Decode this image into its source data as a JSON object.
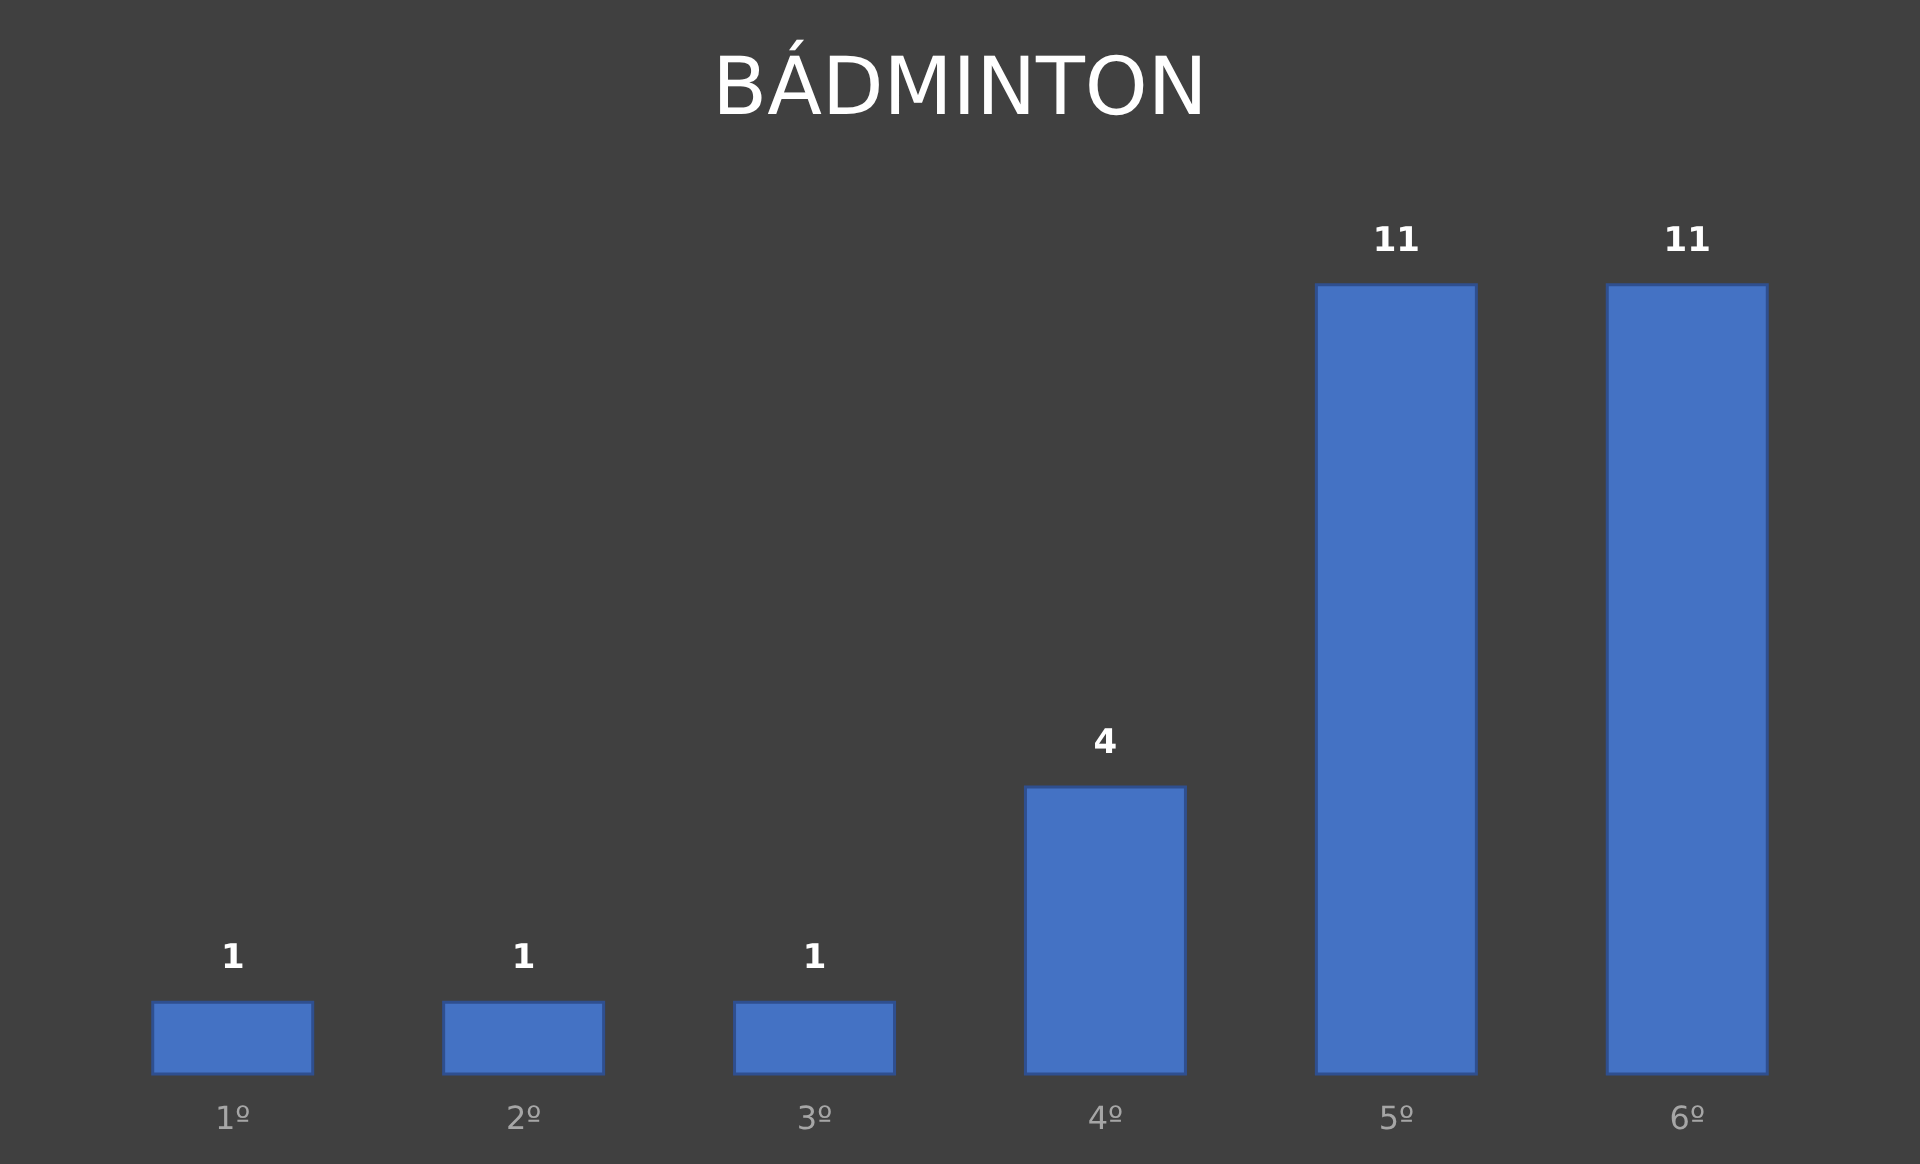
{
  "chart_data": {
    "type": "bar",
    "title": "BÁDMINTON",
    "categories": [
      "1º",
      "2º",
      "3º",
      "4º",
      "5º",
      "6º"
    ],
    "values": [
      1,
      1,
      1,
      4,
      11,
      11
    ],
    "color": "#4472c4",
    "data_labels": true,
    "grid": false,
    "tick_labels": "x"
  }
}
